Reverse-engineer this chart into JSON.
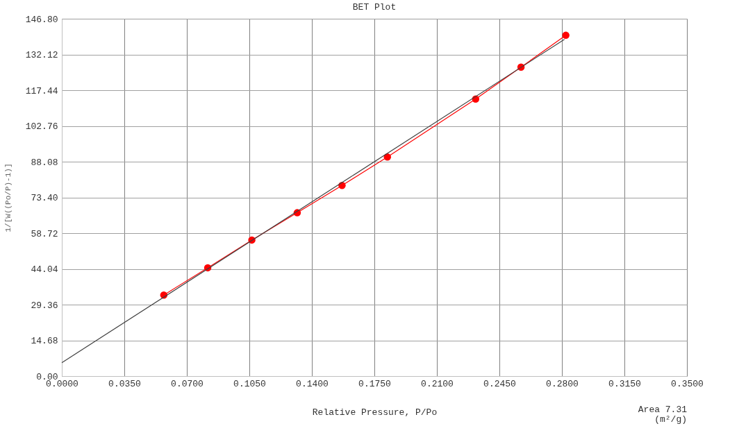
{
  "chart_data": {
    "type": "line",
    "title": "BET Plot",
    "xlabel": "Relative Pressure, P/Po",
    "ylabel": "1/[W((Po/P)-1)]",
    "annotations": [
      "Area 7.31\n(m²/g)"
    ],
    "series": [
      {
        "color": "#ff0000",
        "marker": "circle",
        "x": [
          0.0571,
          0.0817,
          0.1064,
          0.1318,
          0.1569,
          0.1823,
          0.2317,
          0.2571,
          0.2822
        ],
        "values": [
          33.3,
          44.5,
          55.9,
          67.1,
          78.3,
          90.0,
          113.8,
          126.9,
          140.0
        ]
      },
      {
        "color": "#404040",
        "x": [
          0,
          0.2814
        ],
        "values": [
          5.5,
          138.3
        ]
      }
    ],
    "xlim": [
      0,
      0.35
    ],
    "ylim": [
      0,
      146.8
    ],
    "xticks": [
      {
        "value": 0,
        "label": "0.0000"
      },
      {
        "value": 0.035,
        "label": "0.0350"
      },
      {
        "value": 0.07,
        "label": "0.0700"
      },
      {
        "value": 0.105,
        "label": "0.1050"
      },
      {
        "value": 0.14,
        "label": "0.1400"
      },
      {
        "value": 0.175,
        "label": "0.1750"
      },
      {
        "value": 0.21,
        "label": "0.2100"
      },
      {
        "value": 0.245,
        "label": "0.2450"
      },
      {
        "value": 0.28,
        "label": "0.2800"
      },
      {
        "value": 0.315,
        "label": "0.3150"
      },
      {
        "value": 0.35,
        "label": "0.3500"
      }
    ],
    "yticks": [
      {
        "value": 0,
        "label": "0.00"
      },
      {
        "value": 14.68,
        "label": "14.68"
      },
      {
        "value": 29.36,
        "label": "29.36"
      },
      {
        "value": 44.04,
        "label": "44.04"
      },
      {
        "value": 58.72,
        "label": "58.72"
      },
      {
        "value": 73.4,
        "label": "73.40"
      },
      {
        "value": 88.08,
        "label": "88.08"
      },
      {
        "value": 102.76,
        "label": "102.76"
      },
      {
        "value": 117.44,
        "label": "117.44"
      },
      {
        "value": 132.12,
        "label": "132.12"
      },
      {
        "value": 146.8,
        "label": "146.80"
      }
    ],
    "grid": true
  }
}
